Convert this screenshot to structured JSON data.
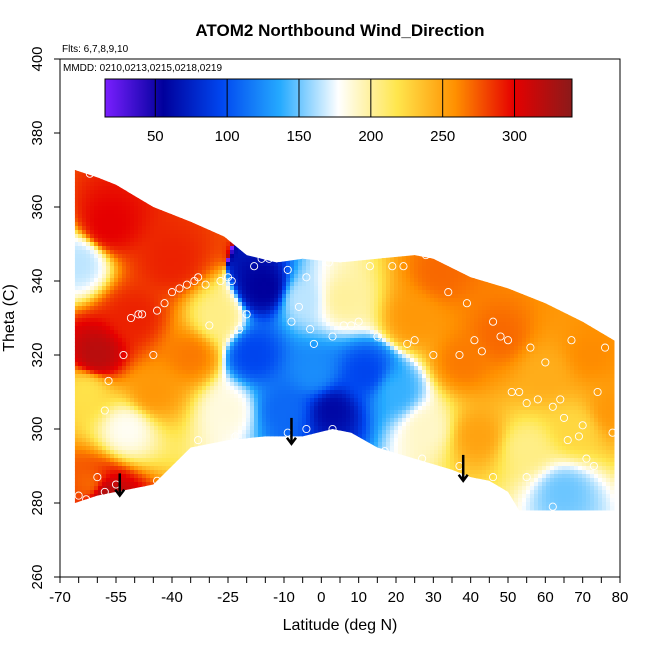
{
  "chart_data": {
    "type": "heatmap",
    "title": "ATOM2 Northbound Wind_Direction",
    "flights_label": "Flts: 6,7,8,9,10",
    "dates_label": "MMDD: 0210,0213,0215,0218,0219",
    "xlabel": "Latitude (deg N)",
    "ylabel": "Theta (C)",
    "xlim": [
      -70,
      80
    ],
    "ylim": [
      260,
      400
    ],
    "x_ticks": [
      -70,
      -55,
      -40,
      -25,
      -10,
      0,
      10,
      20,
      30,
      40,
      50,
      60,
      70,
      80
    ],
    "x_minor_step": 5,
    "y_ticks": [
      260,
      280,
      300,
      320,
      340,
      360,
      380,
      400
    ],
    "colorbar": {
      "range": [
        15,
        340
      ],
      "ticks": [
        50,
        100,
        150,
        200,
        250,
        300
      ],
      "colors": [
        "#7a1fff",
        "#00009c",
        "#0047f0",
        "#25aaff",
        "#ffffff",
        "#ffe64d",
        "#ff9000",
        "#e60000",
        "#8b1a1a"
      ]
    },
    "upper_boundary": [
      [
        -66,
        370
      ],
      [
        -60,
        368
      ],
      [
        -55,
        366
      ],
      [
        -45,
        360
      ],
      [
        -35,
        356
      ],
      [
        -26,
        352
      ],
      [
        -20,
        347
      ],
      [
        -12,
        345
      ],
      [
        -5,
        346
      ],
      [
        5,
        345
      ],
      [
        15,
        346
      ],
      [
        25,
        347
      ],
      [
        30,
        346
      ],
      [
        40,
        341
      ],
      [
        50,
        338
      ],
      [
        60,
        334
      ],
      [
        70,
        329
      ],
      [
        80,
        323
      ]
    ],
    "lower_boundary": [
      [
        -66,
        280
      ],
      [
        -60,
        282
      ],
      [
        -55,
        283
      ],
      [
        -45,
        285
      ],
      [
        -35,
        295
      ],
      [
        -25,
        297
      ],
      [
        -15,
        298
      ],
      [
        -5,
        298
      ],
      [
        3,
        300
      ],
      [
        8,
        299
      ],
      [
        15,
        295
      ],
      [
        25,
        292
      ],
      [
        35,
        289
      ],
      [
        40,
        287
      ],
      [
        45,
        286
      ],
      [
        50,
        283
      ],
      [
        53,
        278
      ],
      [
        60,
        278
      ],
      [
        80,
        278
      ]
    ],
    "regions": [
      {
        "lat": -65,
        "theta": 345,
        "value": 165
      },
      {
        "lat": -63,
        "theta": 310,
        "value": 220
      },
      {
        "lat": -60,
        "theta": 320,
        "value": 320
      },
      {
        "lat": -57,
        "theta": 355,
        "value": 300
      },
      {
        "lat": -52,
        "theta": 300,
        "value": 180
      },
      {
        "lat": -50,
        "theta": 330,
        "value": 290
      },
      {
        "lat": -45,
        "theta": 310,
        "value": 255
      },
      {
        "lat": -40,
        "theta": 345,
        "value": 290
      },
      {
        "lat": -35,
        "theta": 320,
        "value": 265
      },
      {
        "lat": -28,
        "theta": 330,
        "value": 205
      },
      {
        "lat": -25,
        "theta": 305,
        "value": 185
      },
      {
        "lat": -18,
        "theta": 320,
        "value": 95
      },
      {
        "lat": -15,
        "theta": 338,
        "value": 55
      },
      {
        "lat": -10,
        "theta": 305,
        "value": 110
      },
      {
        "lat": -5,
        "theta": 335,
        "value": 165
      },
      {
        "lat": -2,
        "theta": 315,
        "value": 125
      },
      {
        "lat": 3,
        "theta": 305,
        "value": 60
      },
      {
        "lat": 6,
        "theta": 335,
        "value": 200
      },
      {
        "lat": 12,
        "theta": 315,
        "value": 95
      },
      {
        "lat": 20,
        "theta": 310,
        "value": 140
      },
      {
        "lat": 25,
        "theta": 330,
        "value": 255
      },
      {
        "lat": 28,
        "theta": 300,
        "value": 190
      },
      {
        "lat": 32,
        "theta": 342,
        "value": 270
      },
      {
        "lat": 38,
        "theta": 318,
        "value": 265
      },
      {
        "lat": 42,
        "theta": 298,
        "value": 250
      },
      {
        "lat": 48,
        "theta": 325,
        "value": 270
      },
      {
        "lat": 55,
        "theta": 295,
        "value": 205
      },
      {
        "lat": 60,
        "theta": 315,
        "value": 245
      },
      {
        "lat": 68,
        "theta": 300,
        "value": 225
      },
      {
        "lat": 72,
        "theta": 320,
        "value": 260
      },
      {
        "lat": 78,
        "theta": 305,
        "value": 255
      },
      {
        "lat": 65,
        "theta": 283,
        "value": 150
      },
      {
        "lat": -62,
        "theta": 285,
        "value": 270
      },
      {
        "lat": -58,
        "theta": 282,
        "value": 325
      }
    ],
    "observations": [
      [
        -63,
        281
      ],
      [
        -58,
        283
      ],
      [
        -55,
        285
      ],
      [
        -44,
        286
      ],
      [
        -33,
        297
      ],
      [
        -23,
        298
      ],
      [
        -62,
        369
      ],
      [
        -59,
        370
      ],
      [
        -58,
        305
      ],
      [
        -57,
        313
      ],
      [
        -53,
        320
      ],
      [
        -51,
        330
      ],
      [
        -49,
        331
      ],
      [
        -48,
        331
      ],
      [
        -45,
        320
      ],
      [
        -44,
        332
      ],
      [
        -42,
        334
      ],
      [
        -40,
        337
      ],
      [
        -38,
        338
      ],
      [
        -36,
        339
      ],
      [
        -34,
        340
      ],
      [
        -33,
        341
      ],
      [
        -31,
        339
      ],
      [
        -30,
        328
      ],
      [
        -27,
        340
      ],
      [
        -25,
        341
      ],
      [
        -24,
        340
      ],
      [
        -22,
        327
      ],
      [
        -20,
        331
      ],
      [
        -18,
        344
      ],
      [
        -16,
        346
      ],
      [
        -14,
        346
      ],
      [
        -9,
        343
      ],
      [
        -8,
        329
      ],
      [
        -6,
        333
      ],
      [
        -4,
        341
      ],
      [
        -3,
        327
      ],
      [
        -2,
        323
      ],
      [
        2,
        345
      ],
      [
        3,
        325
      ],
      [
        6,
        328
      ],
      [
        8,
        328
      ],
      [
        10,
        329
      ],
      [
        13,
        344
      ],
      [
        15,
        325
      ],
      [
        19,
        344
      ],
      [
        22,
        344
      ],
      [
        23,
        323
      ],
      [
        25,
        324
      ],
      [
        28,
        347
      ],
      [
        30,
        320
      ],
      [
        34,
        337
      ],
      [
        37,
        320
      ],
      [
        39,
        334
      ],
      [
        41,
        324
      ],
      [
        43,
        321
      ],
      [
        46,
        329
      ],
      [
        48,
        325
      ],
      [
        50,
        324
      ],
      [
        51,
        310
      ],
      [
        53,
        310
      ],
      [
        55,
        307
      ],
      [
        56,
        322
      ],
      [
        58,
        308
      ],
      [
        60,
        318
      ],
      [
        62,
        306
      ],
      [
        64,
        308
      ],
      [
        65,
        303
      ],
      [
        66,
        297
      ],
      [
        67,
        324
      ],
      [
        69,
        298
      ],
      [
        70,
        301
      ],
      [
        71,
        292
      ],
      [
        73,
        290
      ],
      [
        74,
        310
      ],
      [
        76,
        322
      ],
      [
        78,
        299
      ],
      [
        80,
        323
      ],
      [
        -9,
        299
      ],
      [
        -4,
        300
      ],
      [
        3,
        300
      ],
      [
        9,
        296
      ],
      [
        17,
        294
      ],
      [
        27,
        292
      ],
      [
        37,
        290
      ],
      [
        46,
        287
      ],
      [
        55,
        287
      ],
      [
        62,
        279
      ],
      [
        -65,
        282
      ],
      [
        -60,
        287
      ]
    ],
    "arrows": [
      {
        "lat": -54,
        "theta_top": 288,
        "theta_tip": 282
      },
      {
        "lat": -8,
        "theta_top": 303,
        "theta_tip": 296
      },
      {
        "lat": 38,
        "theta_top": 293,
        "theta_tip": 286
      }
    ]
  }
}
